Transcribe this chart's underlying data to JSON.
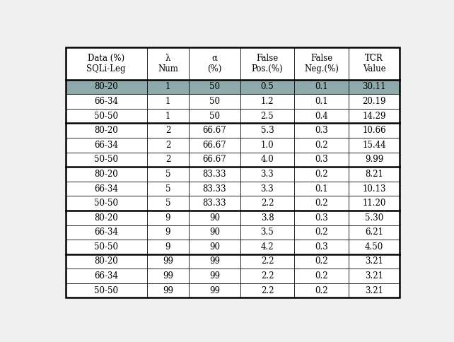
{
  "col_headers": [
    "Data (%)\nSQLi-Leg",
    "λ\nNum",
    "α\n(%)",
    "False\nPos.(%)",
    "False\nNeg.(%)",
    "TCR\nValue"
  ],
  "rows": [
    [
      "80-20",
      "1",
      "50",
      "0.5",
      "0.1",
      "30.11"
    ],
    [
      "66-34",
      "1",
      "50",
      "1.2",
      "0.1",
      "20.19"
    ],
    [
      "50-50",
      "1",
      "50",
      "2.5",
      "0.4",
      "14.29"
    ],
    [
      "80-20",
      "2",
      "66.67",
      "5.3",
      "0.3",
      "10.66"
    ],
    [
      "66-34",
      "2",
      "66.67",
      "1.0",
      "0.2",
      "15.44"
    ],
    [
      "50-50",
      "2",
      "66.67",
      "4.0",
      "0.3",
      "9.99"
    ],
    [
      "80-20",
      "5",
      "83.33",
      "3.3",
      "0.2",
      "8.21"
    ],
    [
      "66-34",
      "5",
      "83.33",
      "3.3",
      "0.1",
      "10.13"
    ],
    [
      "50-50",
      "5",
      "83.33",
      "2.2",
      "0.2",
      "11.20"
    ],
    [
      "80-20",
      "9",
      "90",
      "3.8",
      "0.3",
      "5.30"
    ],
    [
      "66-34",
      "9",
      "90",
      "3.5",
      "0.2",
      "6.21"
    ],
    [
      "50-50",
      "9",
      "90",
      "4.2",
      "0.3",
      "4.50"
    ],
    [
      "80-20",
      "99",
      "99",
      "2.2",
      "0.2",
      "3.21"
    ],
    [
      "66-34",
      "99",
      "99",
      "2.2",
      "0.2",
      "3.21"
    ],
    [
      "50-50",
      "99",
      "99",
      "2.2",
      "0.2",
      "3.21"
    ]
  ],
  "highlight_row": 0,
  "highlight_color": "#8faaac",
  "background_color": "#f0f0f0",
  "table_bg": "#ffffff",
  "border_color": "#000000",
  "text_color": "#000000",
  "font_size": 8.5,
  "header_font_size": 8.5,
  "group_borders": [
    3,
    6,
    9,
    12
  ],
  "col_widths_rel": [
    1.35,
    0.7,
    0.85,
    0.9,
    0.9,
    0.85
  ]
}
